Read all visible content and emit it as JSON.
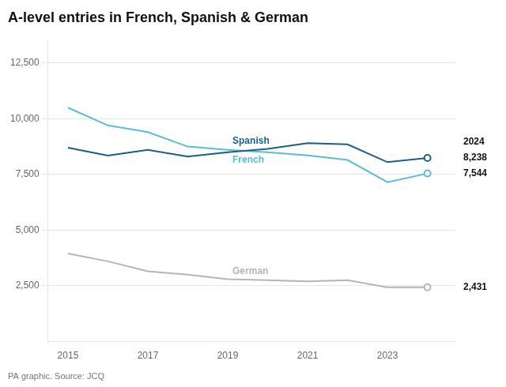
{
  "chart_data": {
    "type": "line",
    "title": "A-level entries in French, Spanish & German",
    "x": [
      2015,
      2016,
      2017,
      2018,
      2019,
      2020,
      2021,
      2022,
      2023,
      2024
    ],
    "series": [
      {
        "name": "Spanish",
        "color": "#1a5f8a",
        "values": [
          8700,
          8350,
          8600,
          8300,
          8500,
          8650,
          8900,
          8850,
          8050,
          8238
        ]
      },
      {
        "name": "French",
        "color": "#5bbcd6",
        "values": [
          10500,
          9700,
          9400,
          8750,
          8600,
          8500,
          8350,
          8150,
          7150,
          7544
        ]
      },
      {
        "name": "German",
        "color": "#b5b5b5",
        "values": [
          3950,
          3600,
          3150,
          3000,
          2800,
          2750,
          2700,
          2750,
          2430,
          2431
        ]
      }
    ],
    "xlim": [
      2014.5,
      2024.7
    ],
    "xticks": [
      2015,
      2017,
      2019,
      2021,
      2023
    ],
    "ylim": [
      0,
      13500
    ],
    "yticks": [
      {
        "value": 2500,
        "label": "2,500"
      },
      {
        "value": 5000,
        "label": "5,000"
      },
      {
        "value": 7500,
        "label": "7,500"
      },
      {
        "value": 10000,
        "label": "10,000"
      },
      {
        "value": 12500,
        "label": "12,500"
      }
    ],
    "grid": true,
    "annotations": [
      {
        "text": "2024",
        "x": 2024
      },
      {
        "text": "8,238",
        "x": 2024,
        "y": 8238
      },
      {
        "text": "7,544",
        "x": 2024,
        "y": 7544
      },
      {
        "text": "2,431",
        "x": 2024,
        "y": 2431
      },
      {
        "text": "PA graphic. Source: JCQ"
      }
    ]
  }
}
